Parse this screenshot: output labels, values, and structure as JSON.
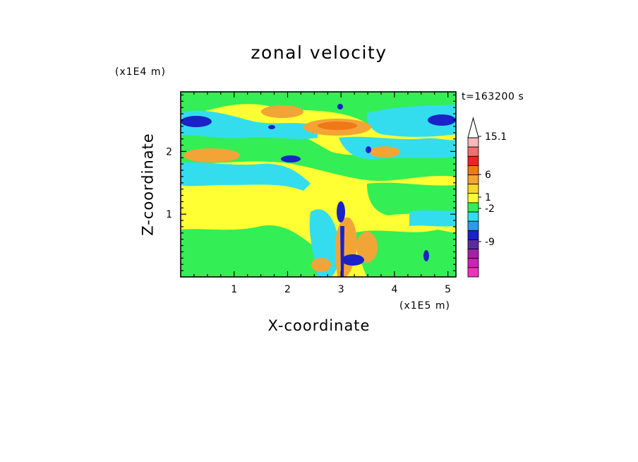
{
  "chart_data": {
    "type": "heatmap",
    "title": "zonal velocity",
    "xlabel": "X-coordinate",
    "ylabel": "Z-coordinate",
    "x_unit": "(x1E5 m)",
    "y_unit": "(x1E4 m)",
    "time_label": "t=163200 s",
    "xlim": [
      0,
      5.15
    ],
    "ylim": [
      0,
      2.95
    ],
    "x_ticks": [
      "1",
      "2",
      "3",
      "4",
      "5"
    ],
    "y_ticks": [
      "1",
      "2"
    ],
    "colorbar": {
      "levels": [
        "15.1",
        "6",
        "1",
        "-2",
        "-9"
      ],
      "colors": [
        "#f7b8b8",
        "#f07070",
        "#e8281e",
        "#f07818",
        "#f3a436",
        "#f7d730",
        "#ffff33",
        "#33ee55",
        "#33ddee",
        "#2b9be8",
        "#1a22c8",
        "#5a2aa5",
        "#a122a8",
        "#cc22b8",
        "#ee33bb"
      ]
    },
    "field": {
      "background": "#ffff33",
      "palette": {
        "neg_lightblue": "#33ddee",
        "neg_green": "#33ee55",
        "neg_darkblue": "#1a22c8",
        "pos_orange": "#f3a436",
        "pos_darkorange": "#f07818"
      }
    }
  }
}
